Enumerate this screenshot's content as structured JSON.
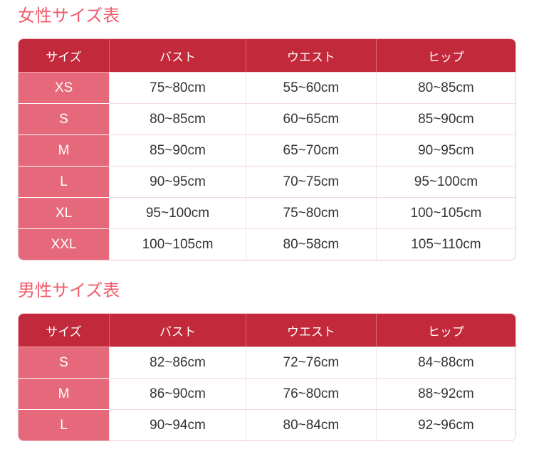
{
  "theme": {
    "title_color": "#f05c6c",
    "header_bg": "#c22a3c",
    "header_text": "#ffffff",
    "size_column_bg": "#e5697a",
    "size_column_text": "#ffffff",
    "cell_text": "#333333",
    "outer_border": "#f2c4cb",
    "row_divider": "#f6dada",
    "page_bg": "#ffffff"
  },
  "tables": [
    {
      "title": "女性サイズ表",
      "headers": [
        "サイズ",
        "バスト",
        "ウエスト",
        "ヒップ"
      ],
      "rows": [
        [
          "XS",
          "75~80cm",
          "55~60cm",
          "80~85cm"
        ],
        [
          "S",
          "80~85cm",
          "60~65cm",
          "85~90cm"
        ],
        [
          "M",
          "85~90cm",
          "65~70cm",
          "90~95cm"
        ],
        [
          "L",
          "90~95cm",
          "70~75cm",
          "95~100cm"
        ],
        [
          "XL",
          "95~100cm",
          "75~80cm",
          "100~105cm"
        ],
        [
          "XXL",
          "100~105cm",
          "80~58cm",
          "105~110cm"
        ]
      ]
    },
    {
      "title": "男性サイズ表",
      "headers": [
        "サイズ",
        "バスト",
        "ウエスト",
        "ヒップ"
      ],
      "rows": [
        [
          "S",
          "82~86cm",
          "72~76cm",
          "84~88cm"
        ],
        [
          "M",
          "86~90cm",
          "76~80cm",
          "88~92cm"
        ],
        [
          "L",
          "90~94cm",
          "80~84cm",
          "92~96cm"
        ]
      ]
    }
  ]
}
